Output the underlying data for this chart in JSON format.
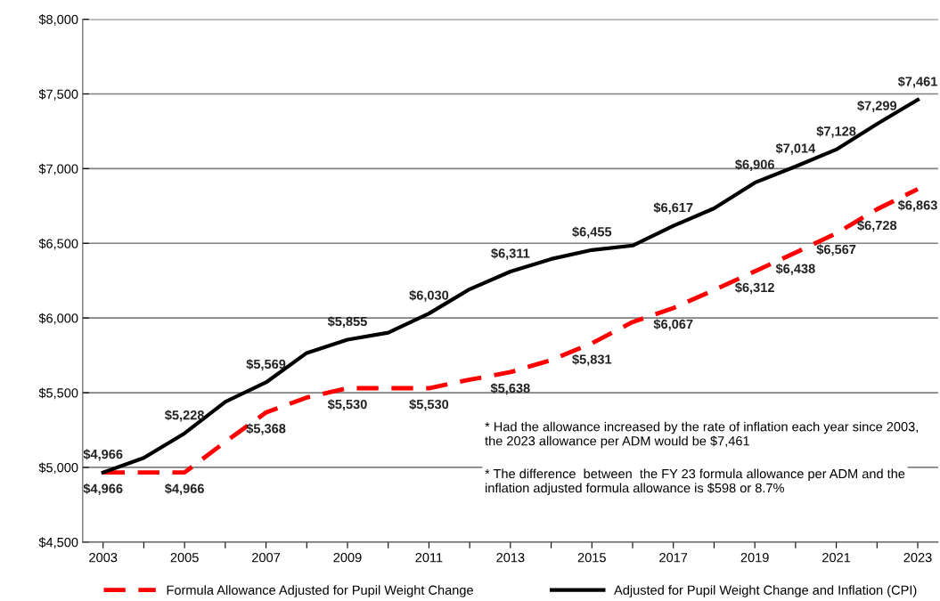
{
  "chart_data": {
    "type": "line",
    "x": [
      2003,
      2004,
      2005,
      2006,
      2007,
      2008,
      2009,
      2010,
      2011,
      2012,
      2013,
      2014,
      2015,
      2016,
      2017,
      2018,
      2019,
      2020,
      2021,
      2022,
      2023
    ],
    "series": [
      {
        "name": "Formula Allowance Adjusted for Pupil Weight Change",
        "color": "#ff0000",
        "line_style": "dashed",
        "values": [
          4966,
          4966,
          4966,
          5171,
          5368,
          5468,
          5530,
          5530,
          5530,
          5587,
          5638,
          5718,
          5831,
          5973,
          6067,
          6187,
          6312,
          6438,
          6567,
          6728,
          6863
        ],
        "value_labels": [
          "$4,966",
          null,
          "$4,966",
          null,
          "$5,368",
          null,
          "$5,530",
          null,
          "$5,530",
          null,
          "$5,638",
          null,
          "$5,831",
          null,
          "$6,067",
          null,
          "$6,312",
          "$6,438",
          "$6,567",
          "$6,728",
          "$6,863"
        ]
      },
      {
        "name": "Adjusted for Pupil Weight Change and Inflation (CPI)",
        "color": "#000000",
        "line_style": "solid",
        "values": [
          4966,
          5064,
          5228,
          5439,
          5569,
          5766,
          5855,
          5902,
          6030,
          6193,
          6311,
          6395,
          6455,
          6485,
          6617,
          6734,
          6906,
          7014,
          7128,
          7299,
          7461
        ],
        "value_labels": [
          "$4,966",
          null,
          "$5,228",
          null,
          "$5,569",
          null,
          "$5,855",
          null,
          "$6,030",
          null,
          "$6,311",
          null,
          "$6,455",
          null,
          "$6,617",
          null,
          "$6,906",
          "$7,014",
          "$7,128",
          "$7,299",
          "$7,461"
        ]
      }
    ],
    "xlim": [
      2002.5,
      2023.5
    ],
    "xticks": [
      2003,
      {
        "value": 2004,
        "label": null
      },
      2005,
      {
        "value": 2006,
        "label": null
      },
      2007,
      {
        "value": 2008,
        "label": null
      },
      2009,
      {
        "value": 2010,
        "label": null
      },
      2011,
      {
        "value": 2012,
        "label": null
      },
      2013,
      {
        "value": 2014,
        "label": null
      },
      2015,
      {
        "value": 2016,
        "label": null
      },
      2017,
      {
        "value": 2018,
        "label": null
      },
      2019,
      {
        "value": 2020,
        "label": null
      },
      2021,
      {
        "value": 2022,
        "label": null
      },
      2023
    ],
    "ylim": [
      4500,
      8000
    ],
    "yticks": [
      {
        "value": 4500,
        "label": "$4,500"
      },
      {
        "value": 5000,
        "label": "$5,000"
      },
      {
        "value": 5500,
        "label": "$5,500"
      },
      {
        "value": 6000,
        "label": "$6,000"
      },
      {
        "value": 6500,
        "label": "$6,500"
      },
      {
        "value": 7000,
        "label": "$7,000"
      },
      {
        "value": 7500,
        "label": "$7,500"
      },
      {
        "value": 8000,
        "label": "$8,000"
      }
    ],
    "grid": "y",
    "legend": "bottom",
    "marker": "none",
    "annotations": [
      "* Had the allowance increased by the rate of inflation each year since 2003, the 2023 allowance per ADM would be $7,461",
      "* The difference  between  the FY 23 formula allowance per ADM and the inflation adjusted formula allowance is $598 or 8.7%"
    ]
  }
}
